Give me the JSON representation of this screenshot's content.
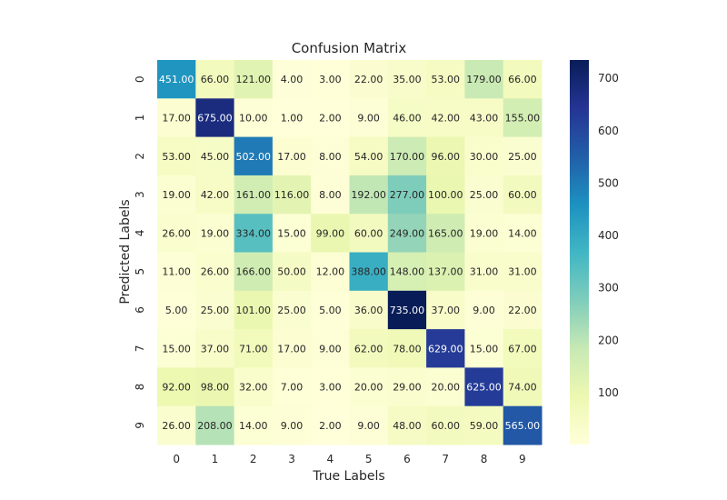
{
  "chart_data": {
    "type": "heatmap",
    "title": "Confusion Matrix",
    "xlabel": "True Labels",
    "ylabel": "Predicted Labels",
    "x_categories": [
      "0",
      "1",
      "2",
      "3",
      "4",
      "5",
      "6",
      "7",
      "8",
      "9"
    ],
    "y_categories": [
      "0",
      "1",
      "2",
      "3",
      "4",
      "5",
      "6",
      "7",
      "8",
      "9"
    ],
    "values": [
      [
        451,
        66,
        121,
        4,
        3,
        22,
        35,
        53,
        179,
        66
      ],
      [
        17,
        675,
        10,
        1,
        2,
        9,
        46,
        42,
        43,
        155
      ],
      [
        53,
        45,
        502,
        17,
        8,
        54,
        170,
        96,
        30,
        25
      ],
      [
        19,
        42,
        161,
        116,
        8,
        192,
        277,
        100,
        25,
        60
      ],
      [
        26,
        19,
        334,
        15,
        99,
        60,
        249,
        165,
        19,
        14
      ],
      [
        11,
        26,
        166,
        50,
        12,
        388,
        148,
        137,
        31,
        31
      ],
      [
        5,
        25,
        101,
        25,
        5,
        36,
        735,
        37,
        9,
        22
      ],
      [
        15,
        37,
        71,
        17,
        9,
        62,
        78,
        629,
        15,
        67
      ],
      [
        92,
        98,
        32,
        7,
        3,
        20,
        29,
        20,
        625,
        74
      ],
      [
        26,
        208,
        14,
        9,
        2,
        9,
        48,
        60,
        59,
        565
      ]
    ],
    "value_format": "0.00",
    "colormap": "YlGnBu",
    "color_range": [
      1,
      735
    ],
    "colorbar_ticks": [
      100,
      200,
      300,
      400,
      500,
      600,
      700
    ],
    "grid": false,
    "colorbar": "right"
  }
}
